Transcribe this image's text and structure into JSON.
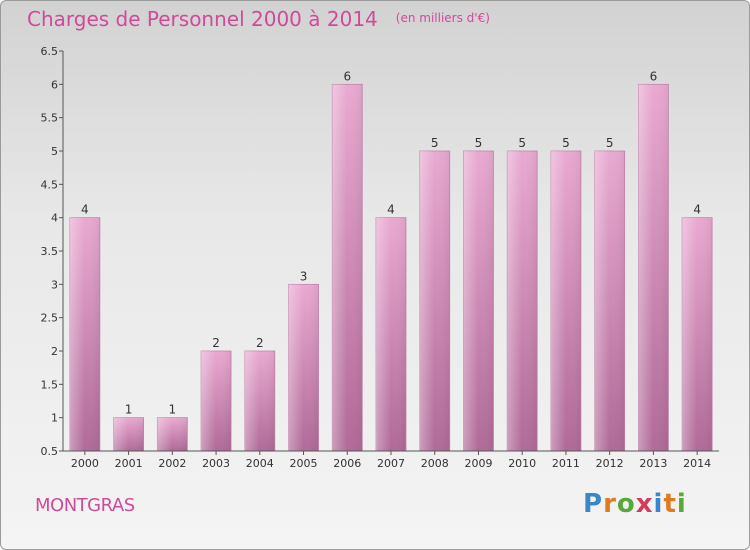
{
  "title": "Charges de Personnel 2000 à 2014",
  "subtitle": "(en milliers d'€)",
  "commune": "MONTGRAS",
  "logo": {
    "letters": [
      "P",
      "r",
      "o",
      "x",
      "i",
      "t",
      "i"
    ],
    "colors": [
      "#3a86c8",
      "#e07a1e",
      "#59a83a",
      "#d63a5a",
      "#3a86c8",
      "#e07a1e",
      "#59a83a"
    ]
  },
  "colors": {
    "accent": "#d04a9a",
    "bar_top": "#e9a9d1",
    "bar_bottom": "#b06a98"
  },
  "chart_data": {
    "type": "bar",
    "categories": [
      "2000",
      "2001",
      "2002",
      "2003",
      "2004",
      "2005",
      "2006",
      "2007",
      "2008",
      "2009",
      "2010",
      "2011",
      "2012",
      "2013",
      "2014"
    ],
    "values": [
      4,
      1,
      1,
      2,
      2,
      3,
      6,
      4,
      5,
      5,
      5,
      5,
      5,
      6,
      4
    ],
    "ylim": [
      0.5,
      6.5
    ],
    "yticks": [
      "0.5",
      "1",
      "1.5",
      "2",
      "2.5",
      "3",
      "3.5",
      "4",
      "4.5",
      "5",
      "5.5",
      "6",
      "6.5"
    ],
    "grid": false,
    "xlabel": "",
    "ylabel": ""
  }
}
